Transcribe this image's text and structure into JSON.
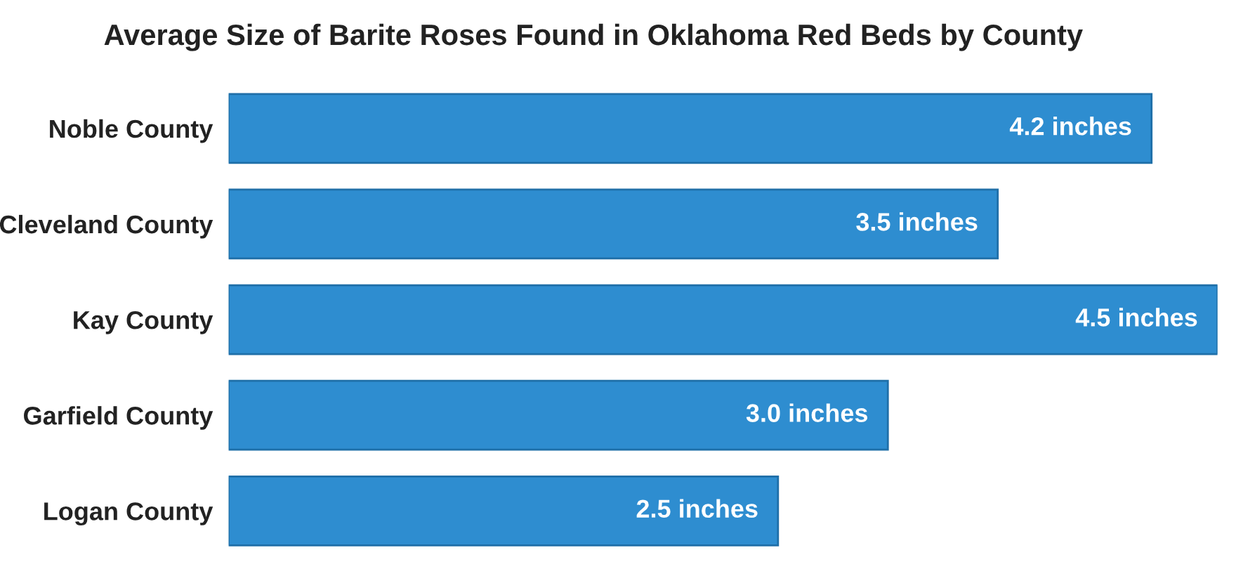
{
  "chart_data": {
    "type": "bar",
    "orientation": "horizontal",
    "title": "Average Size of Barite Roses Found in Oklahoma Red Beds by County",
    "categories": [
      "Noble County",
      "Cleveland County",
      "Kay County",
      "Garfield County",
      "Logan County"
    ],
    "values": [
      4.2,
      3.5,
      4.5,
      3.0,
      2.5
    ],
    "value_labels": [
      "4.2 inches",
      "3.5 inches",
      "4.5 inches",
      "3.0 inches",
      "2.5 inches"
    ],
    "color": "#2e8dd0",
    "grid": false,
    "legend": false
  }
}
